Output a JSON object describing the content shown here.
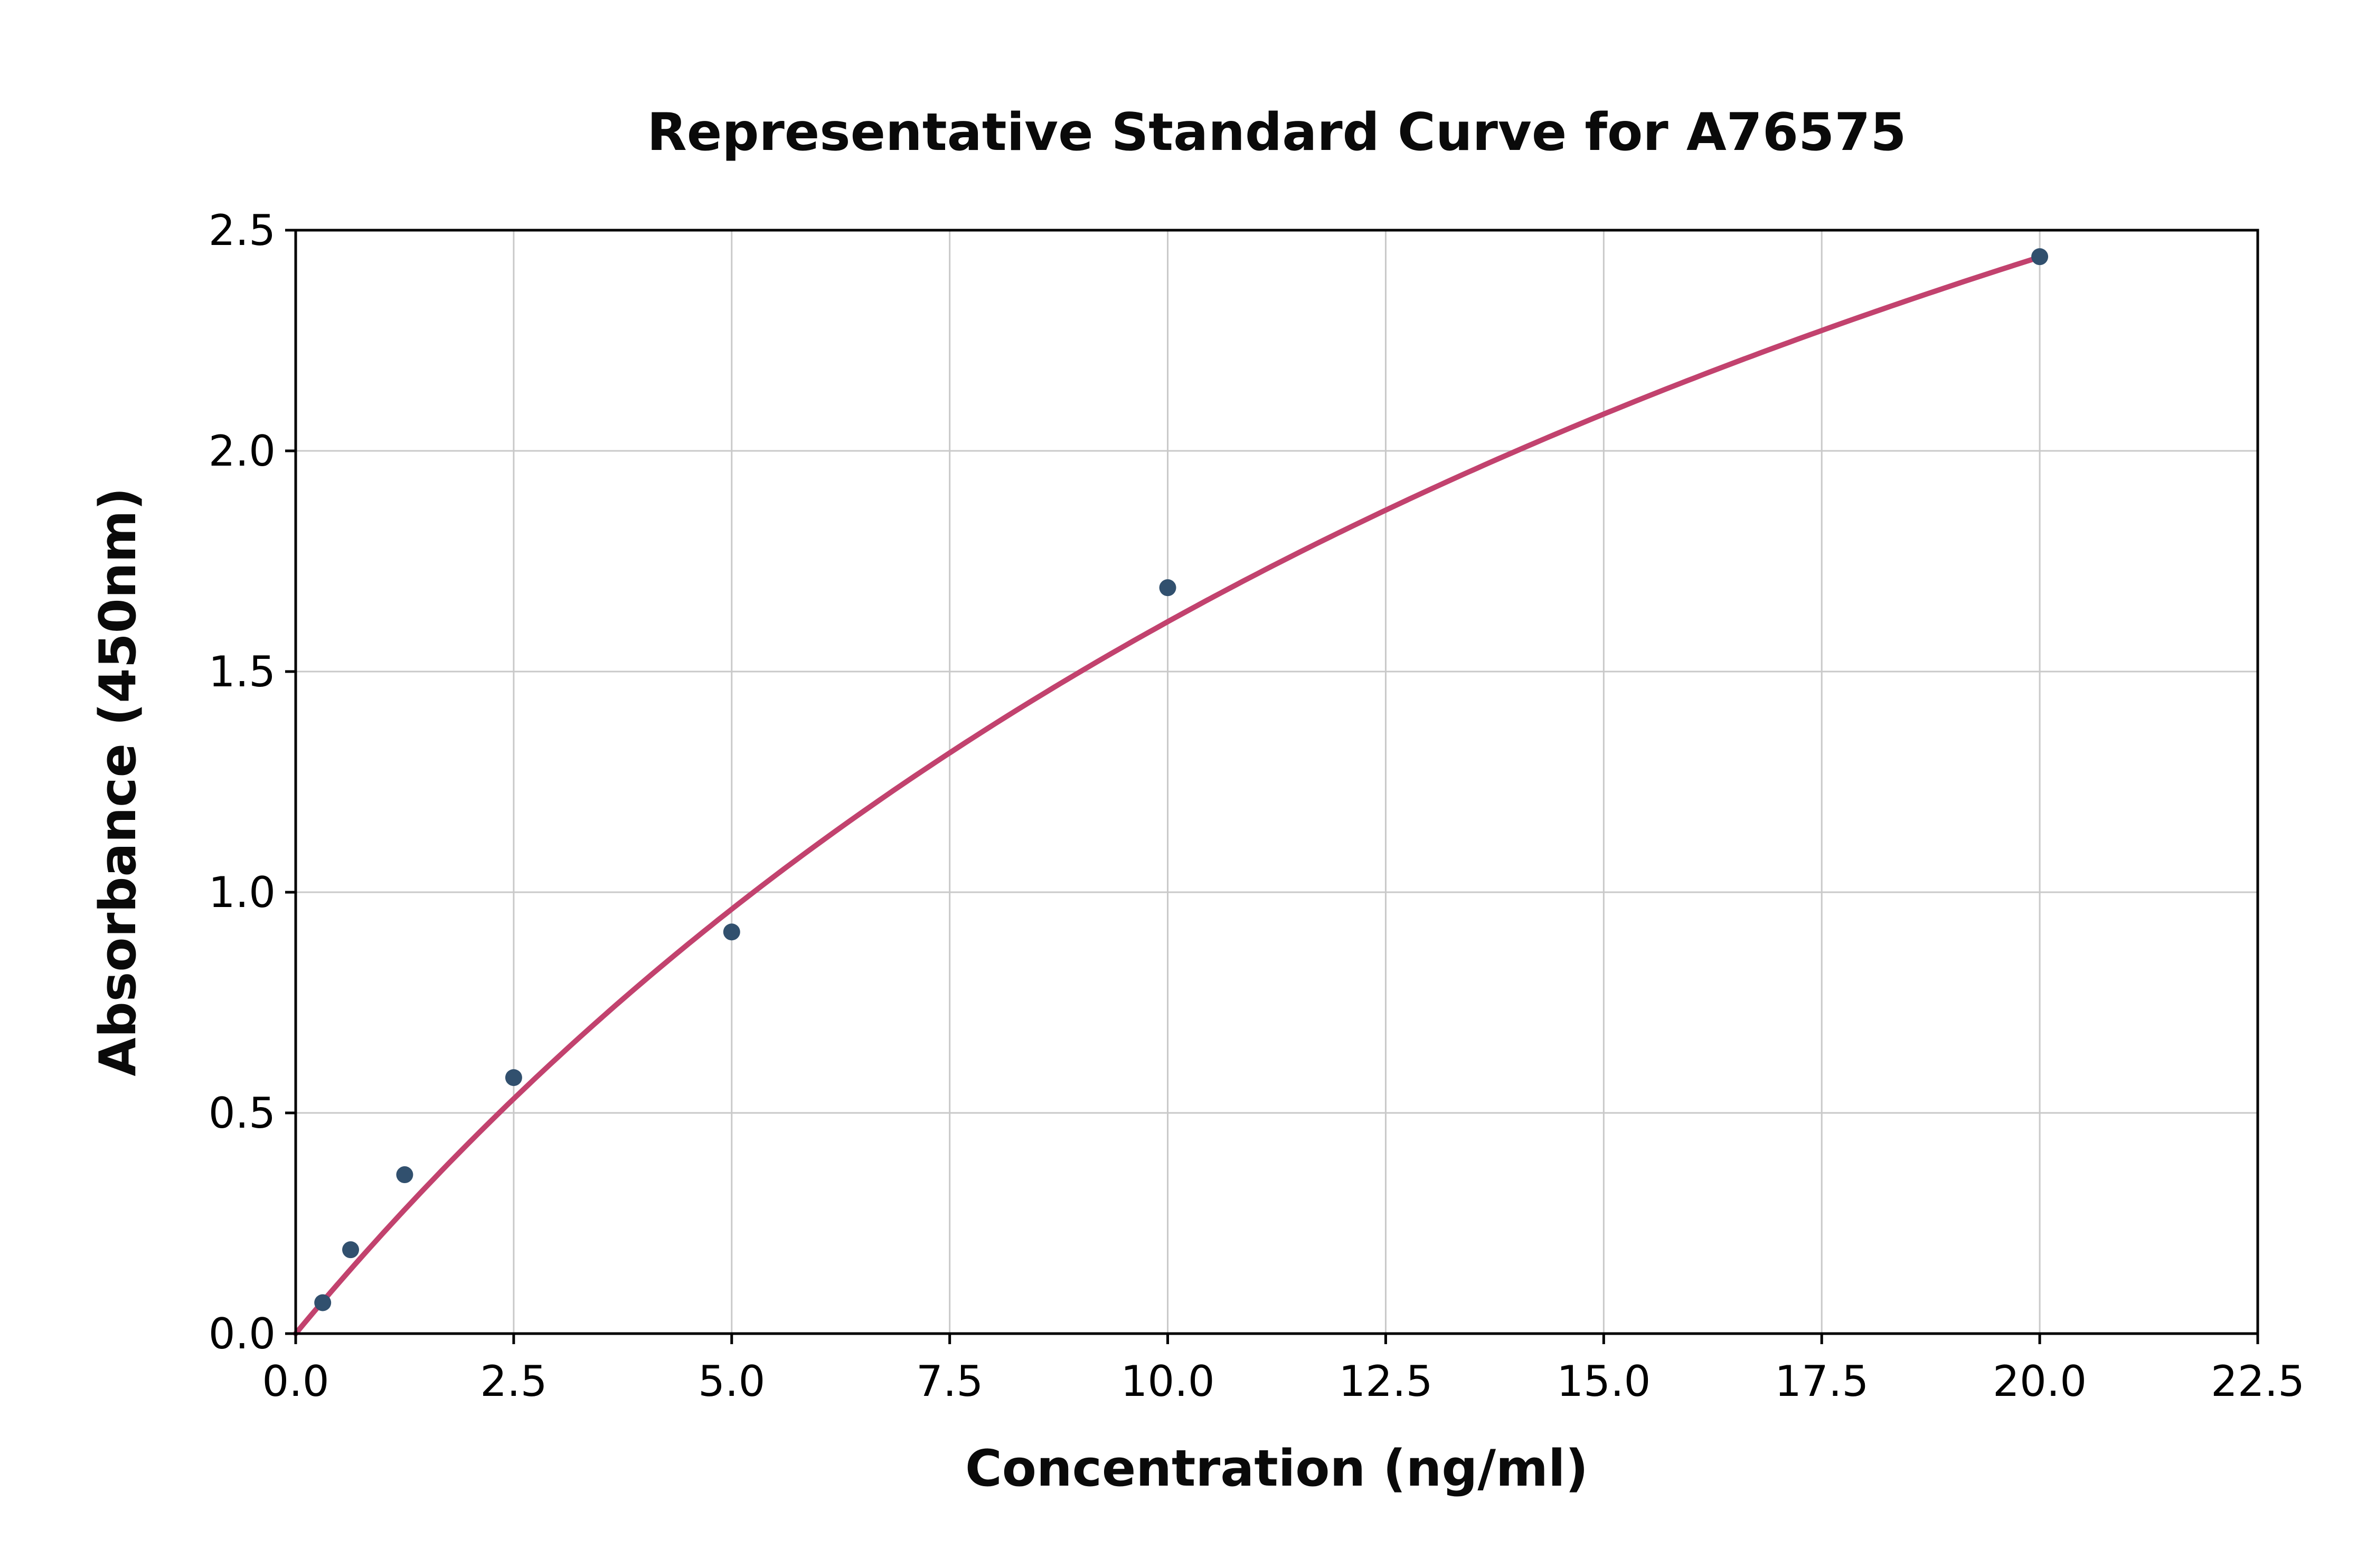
{
  "chart_data": {
    "type": "scatter",
    "title": "Representative Standard Curve for A76575",
    "xlabel": "Concentration (ng/ml)",
    "ylabel": "Absorbance (450nm)",
    "xlim": [
      0,
      22.5
    ],
    "ylim": [
      0,
      2.5
    ],
    "x_ticks": [
      0,
      2.5,
      5,
      7.5,
      10,
      12.5,
      15,
      17.5,
      20,
      22.5
    ],
    "x_tick_labels": [
      "0.0",
      "2.5",
      "5.0",
      "7.5",
      "10.0",
      "12.5",
      "15.0",
      "17.5",
      "20.0",
      "22.5"
    ],
    "y_ticks": [
      0,
      0.5,
      1,
      1.5,
      2,
      2.5
    ],
    "y_tick_labels": [
      "0.0",
      "0.5",
      "1.0",
      "1.5",
      "2.0",
      "2.5"
    ],
    "grid": true,
    "legend": "none",
    "series": [
      {
        "name": "standard-points",
        "type": "scatter",
        "x": [
          0.31,
          0.63,
          1.25,
          2.5,
          5,
          10,
          20
        ],
        "y": [
          0.07,
          0.19,
          0.36,
          0.58,
          0.91,
          1.69,
          2.44
        ]
      },
      {
        "name": "fit-curve",
        "type": "line",
        "model": "y = a*x/(b+x)",
        "a": 5.0,
        "b": 21.0,
        "x_range": [
          0,
          20.05
        ]
      }
    ],
    "colors": {
      "points": "#31506e",
      "curve": "#c2426e",
      "grid": "#c9c9c9",
      "axis": "#000000",
      "background": "#ffffff"
    }
  }
}
